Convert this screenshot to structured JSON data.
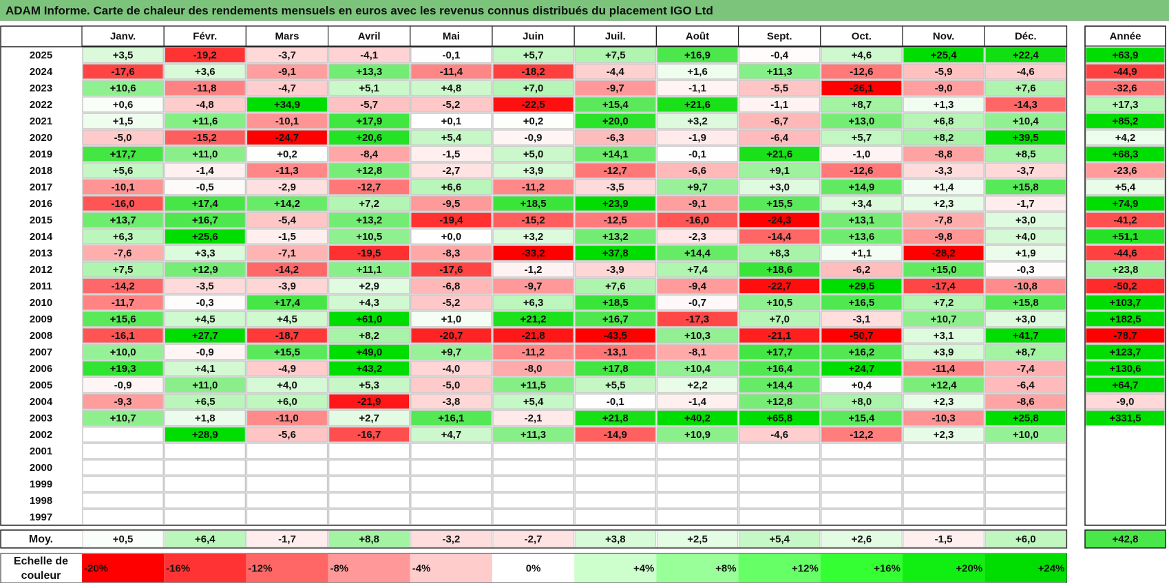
{
  "title": "ADAM Informe. Carte de chaleur des rendements mensuels en euros avec les revenus connus distribués du placement IGO Ltd",
  "chart_data": {
    "type": "heatmap",
    "title": "ADAM Informe. Carte de chaleur des rendements mensuels en euros avec les revenus connus distribués du placement IGO Ltd",
    "columns": [
      "Janv.",
      "Févr.",
      "Mars",
      "Avril",
      "Mai",
      "Juin",
      "Juil.",
      "Août",
      "Sept.",
      "Oct.",
      "Nov.",
      "Déc."
    ],
    "annual_header": "Année",
    "rows": [
      {
        "year": "2025",
        "values": [
          "+3,5",
          "-19,2",
          "-3,7",
          "-4,1",
          "-0,1",
          "+5,7",
          "+7,5",
          "+16,9",
          "-0,4",
          "+4,6",
          "+25,4",
          "+22,4"
        ],
        "annual": "+63,9"
      },
      {
        "year": "2024",
        "values": [
          "-17,6",
          "+3,6",
          "-9,1",
          "+13,3",
          "-11,4",
          "-18,2",
          "-4,4",
          "+1,6",
          "+11,3",
          "-12,6",
          "-5,9",
          "-4,6"
        ],
        "annual": "-44,9"
      },
      {
        "year": "2023",
        "values": [
          "+10,6",
          "-11,8",
          "-4,7",
          "+5,1",
          "+4,8",
          "+7,0",
          "-9,7",
          "-1,1",
          "-5,5",
          "-26,1",
          "-9,0",
          "+7,6"
        ],
        "annual": "-32,6"
      },
      {
        "year": "2022",
        "values": [
          "+0,6",
          "-4,8",
          "+34,9",
          "-5,7",
          "-5,2",
          "-22,5",
          "+15,4",
          "+21,6",
          "-1,1",
          "+8,7",
          "+1,3",
          "-14,3"
        ],
        "annual": "+17,3"
      },
      {
        "year": "2021",
        "values": [
          "+1,5",
          "+11,6",
          "-10,1",
          "+17,9",
          "+0,1",
          "+0,2",
          "+20,0",
          "+3,2",
          "-6,7",
          "+13,0",
          "+6,8",
          "+10,4"
        ],
        "annual": "+85,2"
      },
      {
        "year": "2020",
        "values": [
          "-5,0",
          "-15,2",
          "-24,7",
          "+20,6",
          "+5,4",
          "-0,9",
          "-6,3",
          "-1,9",
          "-6,4",
          "+5,7",
          "+8,2",
          "+39,5"
        ],
        "annual": "+4,2"
      },
      {
        "year": "2019",
        "values": [
          "+17,7",
          "+11,0",
          "+0,2",
          "-8,4",
          "-1,5",
          "+5,0",
          "+14,1",
          "-0,1",
          "+21,6",
          "-1,0",
          "-8,8",
          "+8,5"
        ],
        "annual": "+68,3"
      },
      {
        "year": "2018",
        "values": [
          "+5,6",
          "-1,4",
          "-11,3",
          "+12,8",
          "-2,7",
          "+3,9",
          "-12,7",
          "-6,6",
          "+9,1",
          "-12,6",
          "-3,3",
          "-3,7"
        ],
        "annual": "-23,6"
      },
      {
        "year": "2017",
        "values": [
          "-10,1",
          "-0,5",
          "-2,9",
          "-12,7",
          "+6,6",
          "-11,2",
          "-3,5",
          "+9,7",
          "+3,0",
          "+14,9",
          "+1,4",
          "+15,8"
        ],
        "annual": "+5,4"
      },
      {
        "year": "2016",
        "values": [
          "-16,0",
          "+17,4",
          "+14,2",
          "+7,2",
          "-9,5",
          "+18,5",
          "+23,9",
          "-9,1",
          "+15,5",
          "+3,4",
          "+2,3",
          "-1,7"
        ],
        "annual": "+74,9"
      },
      {
        "year": "2015",
        "values": [
          "+13,7",
          "+16,7",
          "-5,4",
          "+13,2",
          "-19,4",
          "-15,2",
          "-12,5",
          "-16,0",
          "-24,3",
          "+13,1",
          "-7,8",
          "+3,0"
        ],
        "annual": "-41,2"
      },
      {
        "year": "2014",
        "values": [
          "+6,3",
          "+25,6",
          "-1,5",
          "+10,5",
          "+0,0",
          "+3,2",
          "+13,2",
          "-2,3",
          "-14,4",
          "+13,6",
          "-9,8",
          "+4,0"
        ],
        "annual": "+51,1"
      },
      {
        "year": "2013",
        "values": [
          "-7,6",
          "+3,3",
          "-7,1",
          "-19,5",
          "-8,3",
          "-33,2",
          "+37,8",
          "+14,4",
          "+8,3",
          "+1,1",
          "-28,2",
          "+1,9"
        ],
        "annual": "-44,6"
      },
      {
        "year": "2012",
        "values": [
          "+7,5",
          "+12,9",
          "-14,2",
          "+11,1",
          "-17,6",
          "-1,2",
          "-3,9",
          "+7,4",
          "+18,6",
          "-6,2",
          "+15,0",
          "-0,3"
        ],
        "annual": "+23,8"
      },
      {
        "year": "2011",
        "values": [
          "-14,2",
          "-3,5",
          "-3,9",
          "+2,9",
          "-6,8",
          "-9,7",
          "+7,6",
          "-9,4",
          "-22,7",
          "+29,5",
          "-17,4",
          "-10,8"
        ],
        "annual": "-50,2"
      },
      {
        "year": "2010",
        "values": [
          "-11,7",
          "-0,3",
          "+17,4",
          "+4,3",
          "-5,2",
          "+6,3",
          "+18,5",
          "-0,7",
          "+10,5",
          "+16,5",
          "+7,2",
          "+15,8"
        ],
        "annual": "+103,7"
      },
      {
        "year": "2009",
        "values": [
          "+15,6",
          "+4,5",
          "+4,5",
          "+61,0",
          "+1,0",
          "+21,2",
          "+16,7",
          "-17,3",
          "+7,0",
          "-3,1",
          "+10,7",
          "+3,0"
        ],
        "annual": "+182,5"
      },
      {
        "year": "2008",
        "values": [
          "-16,1",
          "+27,7",
          "-18,7",
          "+8,2",
          "-20,7",
          "-21,8",
          "-43,5",
          "+10,3",
          "-21,1",
          "-50,7",
          "+3,1",
          "+41,7"
        ],
        "annual": "-78,7"
      },
      {
        "year": "2007",
        "values": [
          "+10,0",
          "-0,9",
          "+15,5",
          "+49,0",
          "+9,7",
          "-11,2",
          "-13,1",
          "-8,1",
          "+17,7",
          "+16,2",
          "+3,9",
          "+8,7"
        ],
        "annual": "+123,7"
      },
      {
        "year": "2006",
        "values": [
          "+19,3",
          "+4,1",
          "-4,9",
          "+43,2",
          "-4,0",
          "-8,0",
          "+17,8",
          "+10,4",
          "+16,4",
          "+24,7",
          "-11,4",
          "-7,4"
        ],
        "annual": "+130,6"
      },
      {
        "year": "2005",
        "values": [
          "-0,9",
          "+11,0",
          "+4,0",
          "+5,3",
          "-5,0",
          "+11,5",
          "+5,5",
          "+2,2",
          "+14,4",
          "+0,4",
          "+12,4",
          "-6,4"
        ],
        "annual": "+64,7"
      },
      {
        "year": "2004",
        "values": [
          "-9,3",
          "+6,5",
          "+6,0",
          "-21,9",
          "-3,8",
          "+5,4",
          "-0,1",
          "-1,4",
          "+12,8",
          "+8,0",
          "+2,3",
          "-8,6"
        ],
        "annual": "-9,0"
      },
      {
        "year": "2003",
        "values": [
          "+10,7",
          "+1,8",
          "-11,0",
          "+2,7",
          "+16,1",
          "-2,1",
          "+21,8",
          "+40,2",
          "+65,8",
          "+15,4",
          "-10,3",
          "+25,8"
        ],
        "annual": "+331,5"
      },
      {
        "year": "2002",
        "values": [
          "",
          "+28,9",
          "-5,6",
          "-16,7",
          "+4,7",
          "+11,3",
          "-14,9",
          "+10,9",
          "-4,6",
          "-12,2",
          "+2,3",
          "+10,0"
        ],
        "annual": ""
      },
      {
        "year": "2001",
        "values": [
          "",
          "",
          "",
          "",
          "",
          "",
          "",
          "",
          "",
          "",
          "",
          ""
        ],
        "annual": ""
      },
      {
        "year": "2000",
        "values": [
          "",
          "",
          "",
          "",
          "",
          "",
          "",
          "",
          "",
          "",
          "",
          ""
        ],
        "annual": ""
      },
      {
        "year": "1999",
        "values": [
          "",
          "",
          "",
          "",
          "",
          "",
          "",
          "",
          "",
          "",
          "",
          ""
        ],
        "annual": ""
      },
      {
        "year": "1998",
        "values": [
          "",
          "",
          "",
          "",
          "",
          "",
          "",
          "",
          "",
          "",
          "",
          ""
        ],
        "annual": ""
      },
      {
        "year": "1997",
        "values": [
          "",
          "",
          "",
          "",
          "",
          "",
          "",
          "",
          "",
          "",
          "",
          ""
        ],
        "annual": ""
      }
    ],
    "average": {
      "label": "Moy.",
      "values": [
        "+0,5",
        "+6,4",
        "-1,7",
        "+8,8",
        "-3,2",
        "-2,7",
        "+3,8",
        "+2,5",
        "+5,4",
        "+2,6",
        "-1,5",
        "+6,0"
      ],
      "annual": "+42,8"
    },
    "scale": {
      "label_lines": [
        "Echelle de",
        "couleur"
      ],
      "stops": [
        {
          "label": "-20%",
          "value": -20,
          "color": "#ff0000"
        },
        {
          "label": "-16%",
          "value": -16,
          "color": "#ff3333"
        },
        {
          "label": "-12%",
          "value": -12,
          "color": "#ff6666"
        },
        {
          "label": "-8%",
          "value": -8,
          "color": "#ff9999"
        },
        {
          "label": "-4%",
          "value": -4,
          "color": "#ffcccc"
        },
        {
          "label": "0%",
          "value": 0,
          "color": "#ffffff"
        },
        {
          "label": "+4%",
          "value": 4,
          "color": "#ccffcc"
        },
        {
          "label": "+8%",
          "value": 8,
          "color": "#99ff99"
        },
        {
          "label": "+12%",
          "value": 12,
          "color": "#66ff66"
        },
        {
          "label": "+16%",
          "value": 16,
          "color": "#33ff33"
        },
        {
          "label": "+20%",
          "value": 20,
          "color": "#11ee11"
        },
        {
          "label": "+24%",
          "value": 24,
          "color": "#00dd00"
        }
      ]
    }
  }
}
